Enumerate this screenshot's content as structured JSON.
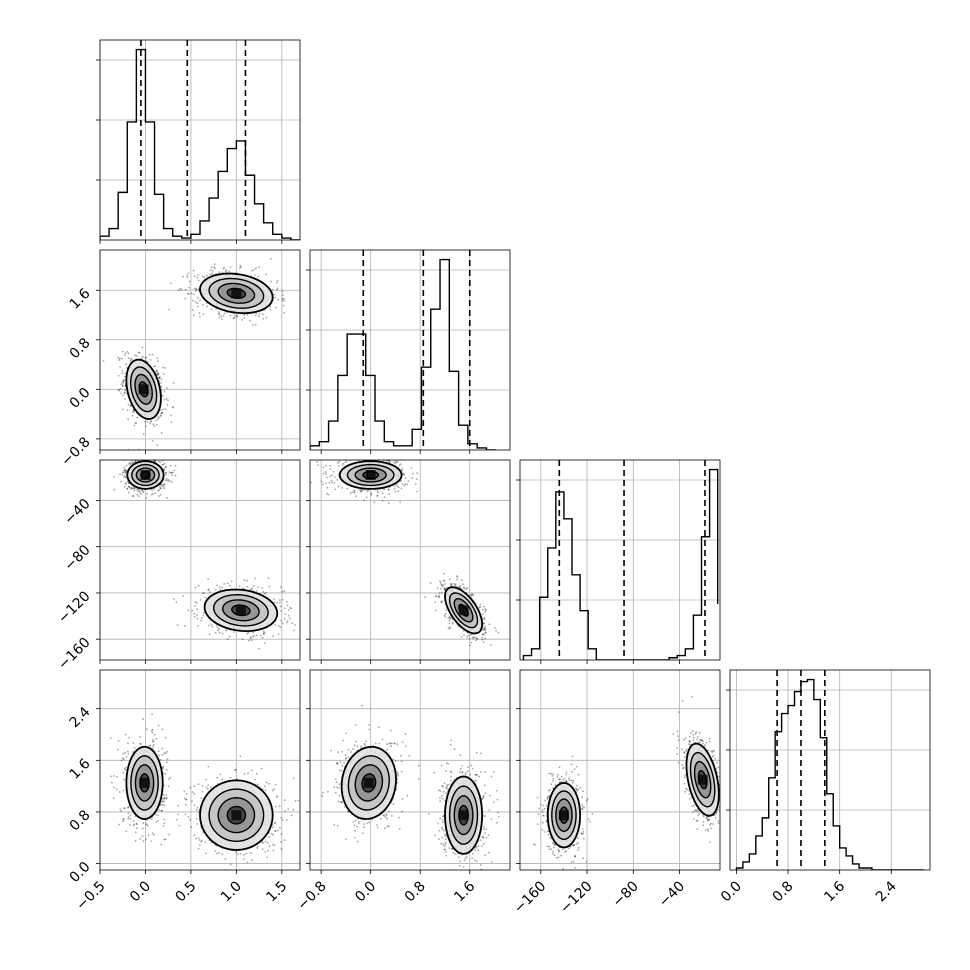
{
  "chart_data": {
    "type": "corner",
    "title": "",
    "parameters": [
      {
        "axis_min": -0.5,
        "axis_max": 1.7,
        "ticks": [
          -0.5,
          0.0,
          0.5,
          1.0,
          1.5
        ],
        "tick_labels": [
          "−0.5",
          "0.0",
          "0.5",
          "1.0",
          "1.5"
        ],
        "quantiles": [
          -0.05,
          0.46,
          1.1
        ]
      },
      {
        "axis_min": -0.98,
        "axis_max": 2.25,
        "ticks": [
          -0.8,
          0.0,
          0.8,
          1.6
        ],
        "tick_labels": [
          "−0.8",
          "0.0",
          "0.8",
          "1.6"
        ],
        "quantiles": [
          -0.12,
          0.85,
          1.6
        ]
      },
      {
        "axis_min": -178,
        "axis_max": -5,
        "ticks": [
          -160,
          -120,
          -80,
          -40
        ],
        "tick_labels": [
          "−160",
          "−120",
          "−80",
          "−40"
        ],
        "quantiles": [
          -144,
          -88,
          -18
        ]
      },
      {
        "axis_min": -0.1,
        "axis_max": 3.0,
        "ticks": [
          0.0,
          0.8,
          1.6,
          2.4
        ],
        "tick_labels": [
          "0.0",
          "0.8",
          "1.6",
          "2.4"
        ],
        "quantiles": [
          0.63,
          1.0,
          1.37
        ]
      }
    ],
    "histograms": [
      {
        "param": 0,
        "bin_edges": [
          -0.5,
          -0.4,
          -0.3,
          -0.2,
          -0.1,
          0.0,
          0.1,
          0.2,
          0.3,
          0.4,
          0.5,
          0.6,
          0.7,
          0.8,
          0.9,
          1.0,
          1.1,
          1.2,
          1.3,
          1.4,
          1.5,
          1.6,
          1.7
        ],
        "counts": [
          2,
          6,
          25,
          62,
          100,
          62,
          24,
          6,
          2,
          1,
          3,
          10,
          22,
          36,
          48,
          52,
          34,
          19,
          9,
          3,
          1,
          0
        ],
        "grid_y": [
          0.3,
          0.6,
          0.9
        ]
      },
      {
        "param": 1,
        "bin_edges": [
          -0.98,
          -0.83,
          -0.68,
          -0.53,
          -0.38,
          -0.23,
          -0.08,
          0.07,
          0.22,
          0.37,
          0.52,
          0.67,
          0.82,
          0.97,
          1.12,
          1.27,
          1.42,
          1.57,
          1.72,
          1.87,
          2.02
        ],
        "counts": [
          2,
          4,
          14,
          36,
          56,
          56,
          36,
          14,
          4,
          2,
          2,
          10,
          40,
          68,
          92,
          38,
          12,
          3,
          1,
          0
        ],
        "grid_y": [
          0.3,
          0.6,
          0.9
        ]
      },
      {
        "param": 2,
        "bin_edges": [
          -175,
          -168,
          -161,
          -154,
          -147,
          -140,
          -133,
          -126,
          -119,
          -112,
          -105,
          -98,
          -91,
          -84,
          -77,
          -70,
          -63,
          -56,
          -49,
          -42,
          -35,
          -28,
          -21,
          -14,
          -7
        ],
        "counts": [
          2,
          5,
          28,
          50,
          75,
          63,
          38,
          22,
          5,
          0,
          0,
          0,
          0,
          0,
          0,
          0,
          0,
          0,
          1,
          2,
          5,
          20,
          55,
          85,
          25
        ],
        "grid_y": [
          0.3,
          0.6,
          0.9
        ]
      },
      {
        "param": 3,
        "bin_edges": [
          0.0,
          0.1,
          0.2,
          0.3,
          0.4,
          0.5,
          0.6,
          0.7,
          0.8,
          0.9,
          1.0,
          1.1,
          1.2,
          1.3,
          1.4,
          1.5,
          1.6,
          1.7,
          1.8,
          1.9,
          2.0,
          2.1,
          2.2,
          2.3,
          2.4,
          2.5,
          2.6,
          2.7,
          2.8,
          2.9
        ],
        "counts": [
          1,
          4,
          8,
          17,
          26,
          46,
          69,
          78,
          82,
          89,
          94,
          95,
          85,
          66,
          38,
          22,
          11,
          7,
          3,
          1,
          1,
          0,
          0,
          0,
          0,
          0,
          0,
          0,
          0
        ],
        "grid_y": [
          0.3,
          0.6,
          0.9
        ]
      }
    ],
    "scatter_panels": [
      {
        "row": 1,
        "col": 0,
        "clusters": [
          {
            "center": [
              -0.02,
              0.0
            ],
            "sd": [
              0.095,
              0.24
            ],
            "rho": -0.3,
            "weight": 0.5
          },
          {
            "center": [
              1.0,
              1.55
            ],
            "sd": [
              0.2,
              0.16
            ],
            "rho": -0.2,
            "weight": 0.5
          }
        ]
      },
      {
        "row": 2,
        "col": 0,
        "clusters": [
          {
            "center": [
              0.0,
              -18
            ],
            "sd": [
              0.1,
              6
            ],
            "rho": 0.0,
            "weight": 0.5
          },
          {
            "center": [
              1.05,
              -135
            ],
            "sd": [
              0.2,
              9
            ],
            "rho": -0.15,
            "weight": 0.5
          }
        ]
      },
      {
        "row": 2,
        "col": 1,
        "clusters": [
          {
            "center": [
              0.0,
              -18
            ],
            "sd": [
              0.25,
              6
            ],
            "rho": 0.0,
            "weight": 0.5
          },
          {
            "center": [
              1.5,
              -135
            ],
            "sd": [
              0.15,
              10
            ],
            "rho": -0.6,
            "weight": 0.5
          }
        ]
      },
      {
        "row": 3,
        "col": 0,
        "clusters": [
          {
            "center": [
              -0.01,
              1.25
            ],
            "sd": [
              0.1,
              0.28
            ],
            "rho": 0.0,
            "weight": 0.5
          },
          {
            "center": [
              1.0,
              0.75
            ],
            "sd": [
              0.2,
              0.27
            ],
            "rho": 0.0,
            "weight": 0.5
          }
        ]
      },
      {
        "row": 3,
        "col": 1,
        "clusters": [
          {
            "center": [
              -0.03,
              1.25
            ],
            "sd": [
              0.22,
              0.28
            ],
            "rho": 0.1,
            "weight": 0.5
          },
          {
            "center": [
              1.5,
              0.75
            ],
            "sd": [
              0.15,
              0.3
            ],
            "rho": 0.0,
            "weight": 0.5
          }
        ]
      },
      {
        "row": 3,
        "col": 2,
        "clusters": [
          {
            "center": [
              -140,
              0.75
            ],
            "sd": [
              7,
              0.25
            ],
            "rho": 0.0,
            "weight": 0.5
          },
          {
            "center": [
              -20,
              1.3
            ],
            "sd": [
              7,
              0.28
            ],
            "rho": -0.4,
            "weight": 0.5
          }
        ]
      }
    ],
    "contour_levels_sigma": [
      0.5,
      1.0,
      1.5,
      2.0
    ],
    "grid": true,
    "colors": {
      "line": "#000000",
      "grid": "#b0b0b0",
      "points": "#000000",
      "fill": "#808080"
    }
  }
}
